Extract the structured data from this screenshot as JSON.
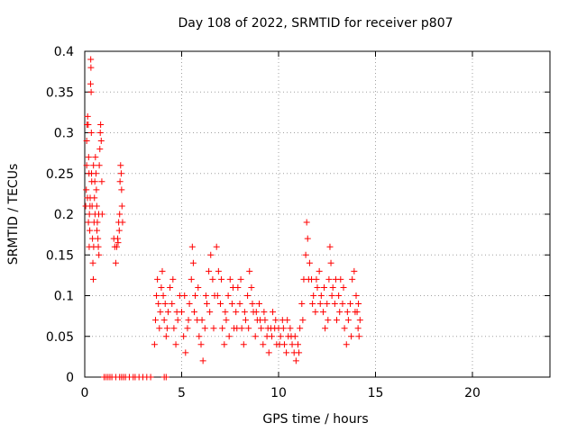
{
  "chart_data": {
    "type": "scatter",
    "title": "Day 108 of 2022, SRMTID for receiver p807",
    "xlabel": "GPS time / hours",
    "ylabel": "SRMTID / TECUs",
    "xlim": [
      0,
      24
    ],
    "ylim": [
      0,
      0.4
    ],
    "xticks": [
      0,
      5,
      10,
      15,
      20
    ],
    "xtick_labels": [
      "0",
      "5",
      "10",
      "15",
      "20"
    ],
    "yticks": [
      0,
      0.05,
      0.1,
      0.15,
      0.2,
      0.25,
      0.3,
      0.35,
      0.4
    ],
    "ytick_labels": [
      "0",
      "0.05",
      "0.1",
      "0.15",
      "0.2",
      "0.25",
      "0.3",
      "0.35",
      "0.4"
    ],
    "grid": true,
    "marker": "plus",
    "color": "#ff0000",
    "series": [
      {
        "name": "SRMTID",
        "points": [
          [
            0.05,
            0.21
          ],
          [
            0.08,
            0.23
          ],
          [
            0.1,
            0.29
          ],
          [
            0.12,
            0.31
          ],
          [
            0.15,
            0.32
          ],
          [
            0.18,
            0.31
          ],
          [
            0.2,
            0.27
          ],
          [
            0.22,
            0.25
          ],
          [
            0.24,
            0.2
          ],
          [
            0.26,
            0.18
          ],
          [
            0.28,
            0.22
          ],
          [
            0.3,
            0.36
          ],
          [
            0.31,
            0.39
          ],
          [
            0.32,
            0.38
          ],
          [
            0.33,
            0.35
          ],
          [
            0.34,
            0.3
          ],
          [
            0.36,
            0.24
          ],
          [
            0.38,
            0.21
          ],
          [
            0.4,
            0.17
          ],
          [
            0.42,
            0.14
          ],
          [
            0.44,
            0.12
          ],
          [
            0.46,
            0.16
          ],
          [
            0.48,
            0.19
          ],
          [
            0.5,
            0.22
          ],
          [
            0.52,
            0.24
          ],
          [
            0.55,
            0.27
          ],
          [
            0.58,
            0.25
          ],
          [
            0.6,
            0.23
          ],
          [
            0.62,
            0.21
          ],
          [
            0.65,
            0.19
          ],
          [
            0.68,
            0.17
          ],
          [
            0.7,
            0.16
          ],
          [
            0.72,
            0.2
          ],
          [
            0.75,
            0.26
          ],
          [
            0.78,
            0.28
          ],
          [
            0.8,
            0.3
          ],
          [
            0.82,
            0.31
          ],
          [
            0.85,
            0.29
          ],
          [
            0.88,
            0.24
          ],
          [
            0.9,
            0.2
          ],
          [
            0.1,
            0.26
          ],
          [
            0.14,
            0.22
          ],
          [
            0.19,
            0.19
          ],
          [
            0.23,
            0.16
          ],
          [
            0.27,
            0.21
          ],
          [
            0.35,
            0.25
          ],
          [
            0.45,
            0.26
          ],
          [
            0.53,
            0.2
          ],
          [
            0.63,
            0.18
          ],
          [
            0.73,
            0.15
          ],
          [
            1.5,
            0.17
          ],
          [
            1.55,
            0.16
          ],
          [
            1.6,
            0.14
          ],
          [
            1.65,
            0.16
          ],
          [
            1.7,
            0.17
          ],
          [
            1.75,
            0.19
          ],
          [
            1.8,
            0.2
          ],
          [
            1.82,
            0.24
          ],
          [
            1.85,
            0.26
          ],
          [
            1.88,
            0.25
          ],
          [
            1.9,
            0.23
          ],
          [
            1.92,
            0.21
          ],
          [
            1.95,
            0.19
          ],
          [
            1.72,
            0.165
          ],
          [
            1.78,
            0.18
          ],
          [
            1.0,
            0.0
          ],
          [
            1.1,
            0.0
          ],
          [
            1.2,
            0.0
          ],
          [
            1.3,
            0.0
          ],
          [
            1.4,
            0.0
          ],
          [
            1.6,
            0.0
          ],
          [
            1.8,
            0.0
          ],
          [
            1.9,
            0.0
          ],
          [
            2.0,
            0.0
          ],
          [
            2.1,
            0.0
          ],
          [
            2.3,
            0.0
          ],
          [
            2.5,
            0.0
          ],
          [
            2.6,
            0.0
          ],
          [
            2.8,
            0.0
          ],
          [
            3.0,
            0.0
          ],
          [
            3.2,
            0.0
          ],
          [
            3.4,
            0.0
          ],
          [
            4.1,
            0.0
          ],
          [
            4.2,
            0.0
          ],
          [
            3.6,
            0.04
          ],
          [
            3.65,
            0.07
          ],
          [
            3.7,
            0.1
          ],
          [
            3.75,
            0.12
          ],
          [
            3.8,
            0.09
          ],
          [
            3.85,
            0.06
          ],
          [
            3.9,
            0.08
          ],
          [
            3.95,
            0.11
          ],
          [
            4.0,
            0.13
          ],
          [
            4.05,
            0.1
          ],
          [
            4.1,
            0.07
          ],
          [
            4.2,
            0.05
          ],
          [
            4.3,
            0.08
          ],
          [
            4.4,
            0.11
          ],
          [
            4.5,
            0.09
          ],
          [
            4.6,
            0.06
          ],
          [
            4.7,
            0.04
          ],
          [
            4.8,
            0.07
          ],
          [
            4.9,
            0.1
          ],
          [
            5.0,
            0.08
          ],
          [
            5.1,
            0.05
          ],
          [
            5.2,
            0.03
          ],
          [
            5.3,
            0.06
          ],
          [
            5.4,
            0.09
          ],
          [
            5.5,
            0.12
          ],
          [
            5.55,
            0.16
          ],
          [
            5.6,
            0.14
          ],
          [
            5.7,
            0.1
          ],
          [
            5.8,
            0.07
          ],
          [
            5.9,
            0.05
          ],
          [
            6.0,
            0.04
          ],
          [
            6.1,
            0.02
          ],
          [
            6.2,
            0.06
          ],
          [
            6.3,
            0.09
          ],
          [
            6.4,
            0.13
          ],
          [
            6.5,
            0.15
          ],
          [
            6.6,
            0.12
          ],
          [
            6.7,
            0.1
          ],
          [
            6.8,
            0.16
          ],
          [
            6.9,
            0.13
          ],
          [
            7.0,
            0.09
          ],
          [
            7.1,
            0.06
          ],
          [
            7.2,
            0.04
          ],
          [
            7.3,
            0.07
          ],
          [
            7.4,
            0.1
          ],
          [
            7.5,
            0.12
          ],
          [
            7.6,
            0.09
          ],
          [
            7.7,
            0.06
          ],
          [
            7.8,
            0.08
          ],
          [
            7.9,
            0.11
          ],
          [
            8.0,
            0.09
          ],
          [
            8.1,
            0.06
          ],
          [
            8.2,
            0.04
          ],
          [
            8.3,
            0.07
          ],
          [
            8.4,
            0.1
          ],
          [
            8.5,
            0.13
          ],
          [
            8.6,
            0.11
          ],
          [
            8.7,
            0.08
          ],
          [
            8.8,
            0.05
          ],
          [
            8.9,
            0.07
          ],
          [
            9.0,
            0.09
          ],
          [
            9.1,
            0.06
          ],
          [
            9.2,
            0.04
          ],
          [
            9.3,
            0.07
          ],
          [
            9.4,
            0.05
          ],
          [
            9.5,
            0.03
          ],
          [
            9.6,
            0.06
          ],
          [
            9.7,
            0.08
          ],
          [
            9.8,
            0.06
          ],
          [
            9.9,
            0.04
          ],
          [
            10.0,
            0.06
          ],
          [
            10.1,
            0.05
          ],
          [
            10.2,
            0.07
          ],
          [
            10.3,
            0.04
          ],
          [
            10.4,
            0.03
          ],
          [
            10.5,
            0.05
          ],
          [
            10.6,
            0.06
          ],
          [
            10.7,
            0.04
          ],
          [
            10.8,
            0.03
          ],
          [
            10.9,
            0.02
          ],
          [
            11.0,
            0.04
          ],
          [
            11.1,
            0.06
          ],
          [
            11.2,
            0.09
          ],
          [
            11.3,
            0.12
          ],
          [
            11.4,
            0.15
          ],
          [
            11.45,
            0.19
          ],
          [
            11.5,
            0.17
          ],
          [
            11.6,
            0.14
          ],
          [
            11.7,
            0.12
          ],
          [
            11.8,
            0.1
          ],
          [
            11.9,
            0.08
          ],
          [
            12.0,
            0.11
          ],
          [
            12.1,
            0.13
          ],
          [
            12.2,
            0.1
          ],
          [
            12.3,
            0.08
          ],
          [
            12.4,
            0.06
          ],
          [
            12.5,
            0.09
          ],
          [
            12.6,
            0.12
          ],
          [
            12.65,
            0.16
          ],
          [
            12.7,
            0.14
          ],
          [
            12.8,
            0.11
          ],
          [
            12.9,
            0.09
          ],
          [
            13.0,
            0.07
          ],
          [
            13.1,
            0.1
          ],
          [
            13.2,
            0.12
          ],
          [
            13.3,
            0.09
          ],
          [
            13.4,
            0.06
          ],
          [
            13.5,
            0.04
          ],
          [
            13.6,
            0.07
          ],
          [
            13.7,
            0.09
          ],
          [
            13.8,
            0.12
          ],
          [
            13.9,
            0.13
          ],
          [
            14.0,
            0.1
          ],
          [
            14.05,
            0.08
          ],
          [
            14.1,
            0.06
          ],
          [
            14.15,
            0.05
          ],
          [
            14.2,
            0.07
          ],
          [
            4.15,
            0.09
          ],
          [
            4.25,
            0.06
          ],
          [
            4.55,
            0.12
          ],
          [
            4.75,
            0.08
          ],
          [
            5.15,
            0.1
          ],
          [
            5.35,
            0.07
          ],
          [
            5.65,
            0.08
          ],
          [
            5.85,
            0.11
          ],
          [
            6.05,
            0.07
          ],
          [
            6.25,
            0.1
          ],
          [
            6.45,
            0.08
          ],
          [
            6.65,
            0.06
          ],
          [
            6.85,
            0.1
          ],
          [
            7.05,
            0.12
          ],
          [
            7.25,
            0.08
          ],
          [
            7.45,
            0.05
          ],
          [
            7.65,
            0.11
          ],
          [
            7.85,
            0.06
          ],
          [
            8.05,
            0.12
          ],
          [
            8.25,
            0.08
          ],
          [
            8.45,
            0.06
          ],
          [
            8.65,
            0.09
          ],
          [
            8.85,
            0.08
          ],
          [
            9.05,
            0.07
          ],
          [
            9.25,
            0.08
          ],
          [
            9.45,
            0.06
          ],
          [
            9.65,
            0.05
          ],
          [
            9.85,
            0.07
          ],
          [
            10.05,
            0.04
          ],
          [
            10.25,
            0.06
          ],
          [
            10.45,
            0.07
          ],
          [
            10.65,
            0.05
          ],
          [
            10.85,
            0.05
          ],
          [
            11.05,
            0.03
          ],
          [
            11.25,
            0.07
          ],
          [
            11.55,
            0.12
          ],
          [
            11.75,
            0.09
          ],
          [
            11.95,
            0.12
          ],
          [
            12.15,
            0.09
          ],
          [
            12.35,
            0.11
          ],
          [
            12.55,
            0.07
          ],
          [
            12.75,
            0.1
          ],
          [
            12.95,
            0.12
          ],
          [
            13.15,
            0.08
          ],
          [
            13.35,
            0.11
          ],
          [
            13.55,
            0.08
          ],
          [
            13.75,
            0.05
          ],
          [
            13.95,
            0.08
          ],
          [
            14.12,
            0.09
          ]
        ]
      }
    ]
  }
}
